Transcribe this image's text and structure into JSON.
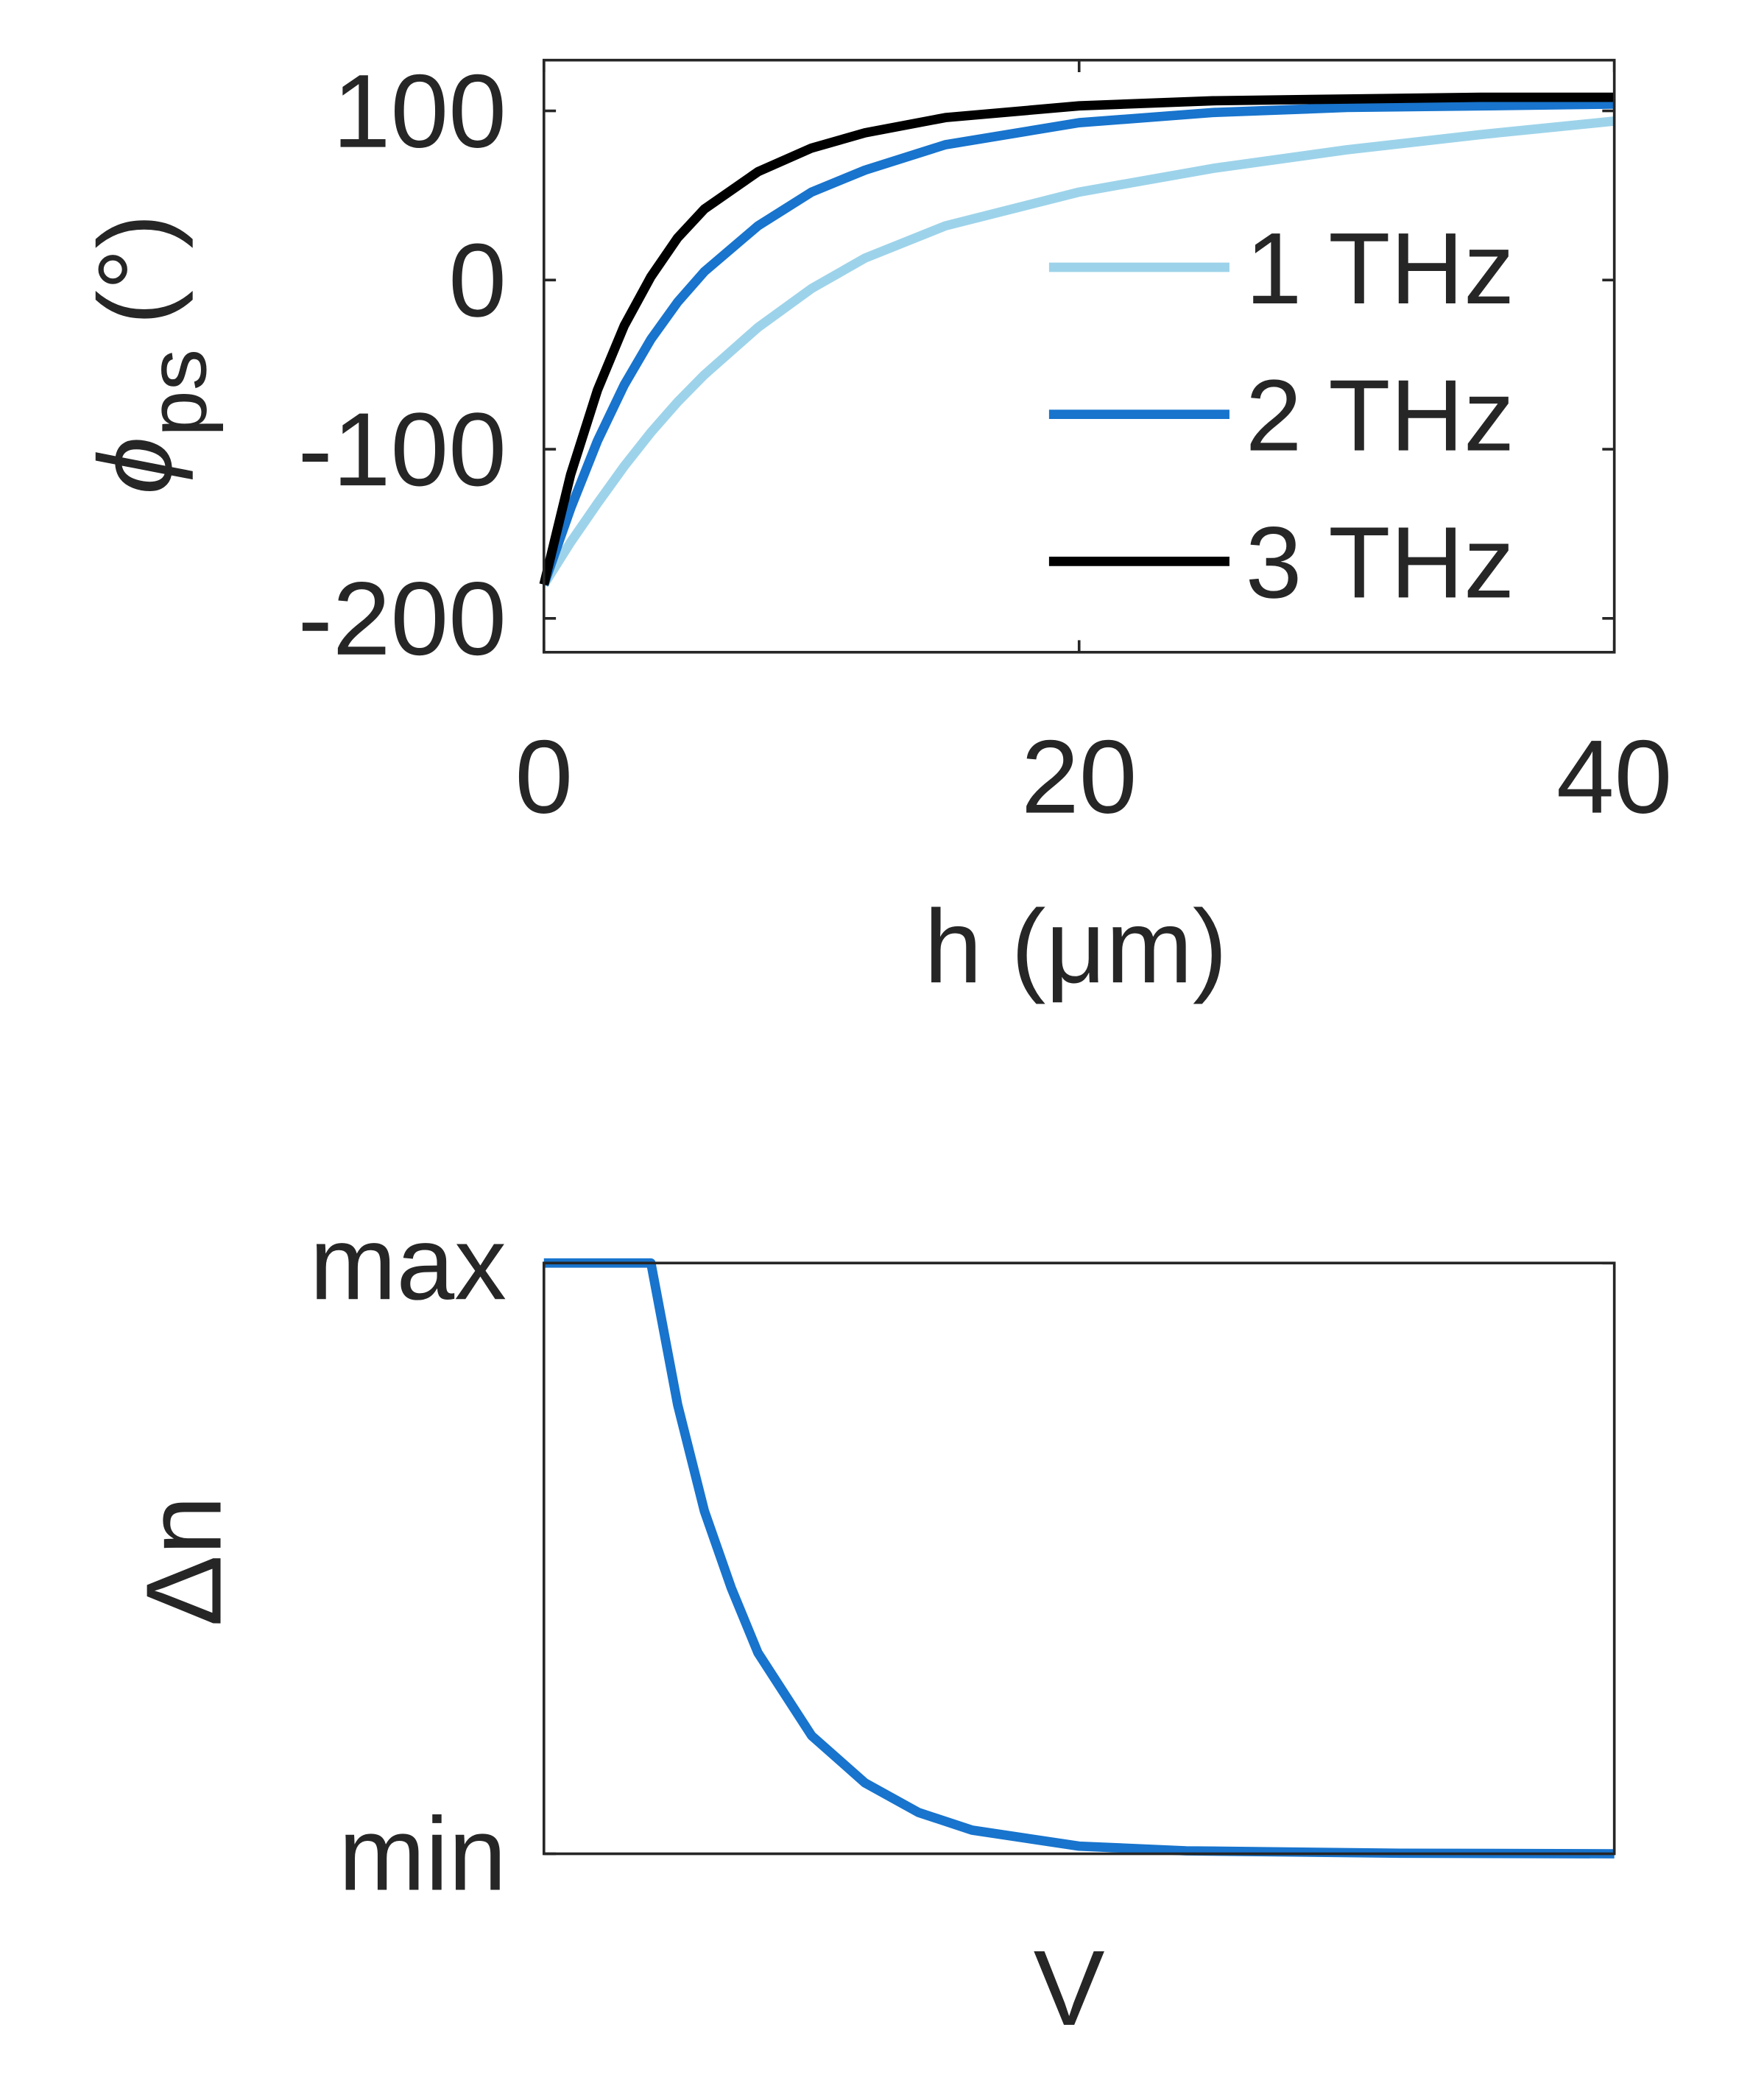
{
  "chart_data": [
    {
      "type": "line",
      "ylabel_symbol": "ϕ",
      "ylabel_sub": "ps",
      "ylabel_unit": "(°)",
      "xlabel": "h (μm)",
      "x": [
        0,
        1,
        2,
        3,
        4,
        5,
        6,
        8,
        10,
        12,
        15,
        20,
        25,
        30,
        35,
        40
      ],
      "series": [
        {
          "name": "1 THz",
          "color": "#9dd3ea",
          "values": [
            -180,
            -155,
            -132,
            -110,
            -90,
            -72,
            -56,
            -28,
            -5,
            13,
            32,
            52,
            66,
            77,
            86,
            94
          ]
        },
        {
          "name": "2 THz",
          "color": "#1874cd",
          "values": [
            -180,
            -135,
            -95,
            -62,
            -35,
            -13,
            5,
            32,
            52,
            65,
            80,
            93,
            99,
            102,
            103,
            104
          ]
        },
        {
          "name": "3 THz",
          "color": "#000000",
          "values": [
            -180,
            -115,
            -65,
            -27,
            2,
            25,
            42,
            64,
            78,
            87,
            96,
            103,
            106,
            107,
            108,
            108
          ]
        }
      ],
      "xlim": [
        0,
        40
      ],
      "xticks": [
        0,
        20,
        40
      ],
      "ylim": [
        -220,
        130
      ],
      "yticks": [
        -200,
        -100,
        0,
        100
      ],
      "legend": "right"
    },
    {
      "type": "line",
      "ylabel": "Δn",
      "xlabel": "V",
      "x": [
        0,
        0.1,
        0.125,
        0.15,
        0.175,
        0.2,
        0.25,
        0.3,
        0.35,
        0.4,
        0.5,
        0.6,
        0.8,
        1
      ],
      "series": [
        {
          "color": "#1874cd",
          "values": [
            1,
            1,
            0.76,
            0.58,
            0.45,
            0.34,
            0.2,
            0.12,
            0.07,
            0.04,
            0.013,
            0.005,
            0.001,
            0
          ]
        }
      ],
      "xlim": [
        0,
        1
      ],
      "ylim": [
        0,
        1
      ],
      "yticks": [
        {
          "value": 0,
          "label": "min"
        },
        {
          "value": 1,
          "label": "max"
        }
      ]
    }
  ]
}
